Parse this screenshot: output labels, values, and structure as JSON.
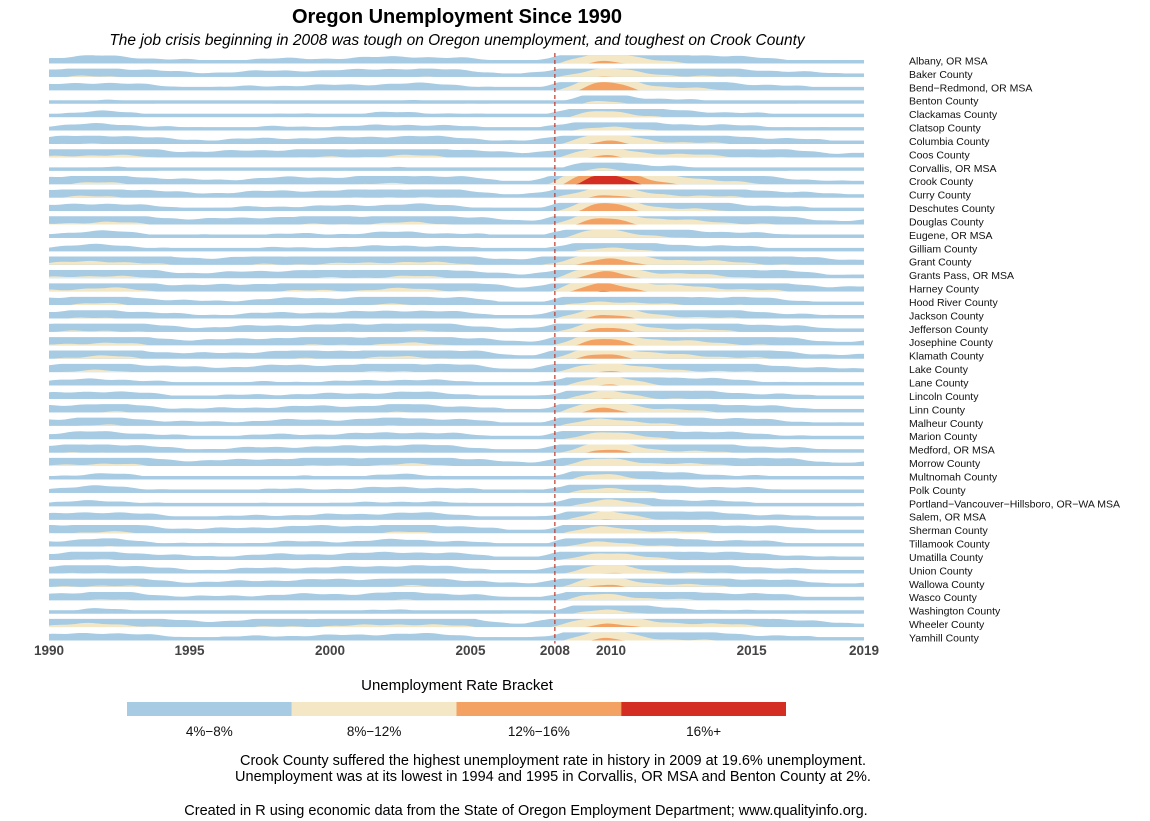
{
  "chart_data": {
    "type": "horizon",
    "title": "Oregon Unemployment Since 1990",
    "subtitle": "The job crisis beginning in 2008 was tough on Oregon unemployment, and toughest on Crook County",
    "x_ticks": [
      1990,
      1995,
      2000,
      2005,
      2008,
      2010,
      2015,
      2019
    ],
    "xlim": [
      1990,
      2019
    ],
    "reference_line": {
      "x": 2008,
      "color": "#c0392b",
      "style": "dashed"
    },
    "series": [
      {
        "name": "Albany, OR MSA",
        "peak": 12.5,
        "base": 6.5,
        "trough": 4.4
      },
      {
        "name": "Baker County",
        "peak": 11.5,
        "base": 7.2,
        "trough": 5.0
      },
      {
        "name": "Bend−Redmond, OR MSA",
        "peak": 14.5,
        "base": 6.5,
        "trough": 4.2
      },
      {
        "name": "Benton County",
        "peak": 8.5,
        "base": 4.5,
        "trough": 2.0
      },
      {
        "name": "Clackamas County",
        "peak": 10.5,
        "base": 5.5,
        "trough": 4.0
      },
      {
        "name": "Clatsop County",
        "peak": 9.5,
        "base": 6.0,
        "trough": 4.5
      },
      {
        "name": "Columbia County",
        "peak": 12.5,
        "base": 7.0,
        "trough": 5.0
      },
      {
        "name": "Coos County",
        "peak": 12.0,
        "base": 8.0,
        "trough": 5.5
      },
      {
        "name": "Corvallis, OR MSA",
        "peak": 8.5,
        "base": 4.5,
        "trough": 2.0
      },
      {
        "name": "Crook County",
        "peak": 19.6,
        "base": 7.5,
        "trough": 4.5
      },
      {
        "name": "Curry County",
        "peak": 12.5,
        "base": 7.5,
        "trough": 5.0
      },
      {
        "name": "Deschutes County",
        "peak": 14.5,
        "base": 6.5,
        "trough": 4.2
      },
      {
        "name": "Douglas County",
        "peak": 14.0,
        "base": 8.0,
        "trough": 5.2
      },
      {
        "name": "Eugene, OR MSA",
        "peak": 11.5,
        "base": 6.0,
        "trough": 4.3
      },
      {
        "name": "Gilliam County",
        "peak": 9.5,
        "base": 6.0,
        "trough": 3.5
      },
      {
        "name": "Grant County",
        "peak": 14.0,
        "base": 8.5,
        "trough": 6.0
      },
      {
        "name": "Grants Pass, OR MSA",
        "peak": 14.0,
        "base": 8.0,
        "trough": 5.0
      },
      {
        "name": "Harney County",
        "peak": 15.0,
        "base": 8.5,
        "trough": 5.5
      },
      {
        "name": "Hood River County",
        "peak": 9.5,
        "base": 7.5,
        "trough": 4.0
      },
      {
        "name": "Jackson County",
        "peak": 13.0,
        "base": 7.0,
        "trough": 4.5
      },
      {
        "name": "Jefferson County",
        "peak": 13.0,
        "base": 7.5,
        "trough": 4.8
      },
      {
        "name": "Josephine County",
        "peak": 14.0,
        "base": 8.0,
        "trough": 5.0
      },
      {
        "name": "Klamath County",
        "peak": 13.5,
        "base": 8.0,
        "trough": 5.0
      },
      {
        "name": "Lake County",
        "peak": 12.0,
        "base": 7.5,
        "trough": 5.0
      },
      {
        "name": "Lane County",
        "peak": 11.5,
        "base": 6.0,
        "trough": 4.3
      },
      {
        "name": "Lincoln County",
        "peak": 11.0,
        "base": 6.5,
        "trough": 4.5
      },
      {
        "name": "Linn County",
        "peak": 13.0,
        "base": 7.0,
        "trough": 4.5
      },
      {
        "name": "Malheur County",
        "peak": 11.0,
        "base": 7.0,
        "trough": 4.5
      },
      {
        "name": "Marion County",
        "peak": 11.0,
        "base": 6.5,
        "trough": 4.3
      },
      {
        "name": "Medford, OR MSA",
        "peak": 12.5,
        "base": 7.0,
        "trough": 4.5
      },
      {
        "name": "Morrow County",
        "peak": 11.0,
        "base": 8.0,
        "trough": 5.0
      },
      {
        "name": "Multnomah County",
        "peak": 10.0,
        "base": 5.5,
        "trough": 3.5
      },
      {
        "name": "Polk County",
        "peak": 10.0,
        "base": 6.0,
        "trough": 4.0
      },
      {
        "name": "Portland−Vancouver−Hillsboro, OR−WA MSA",
        "peak": 10.5,
        "base": 5.5,
        "trough": 3.8
      },
      {
        "name": "Salem, OR MSA",
        "peak": 11.0,
        "base": 6.5,
        "trough": 4.3
      },
      {
        "name": "Sherman County",
        "peak": 10.5,
        "base": 7.5,
        "trough": 4.5
      },
      {
        "name": "Tillamook County",
        "peak": 10.0,
        "base": 6.5,
        "trough": 4.0
      },
      {
        "name": "Umatilla County",
        "peak": 11.0,
        "base": 7.0,
        "trough": 4.5
      },
      {
        "name": "Union County",
        "peak": 11.5,
        "base": 7.0,
        "trough": 4.5
      },
      {
        "name": "Wallowa County",
        "peak": 12.0,
        "base": 7.5,
        "trough": 5.0
      },
      {
        "name": "Wasco County",
        "peak": 10.5,
        "base": 7.0,
        "trough": 4.5
      },
      {
        "name": "Washington County",
        "peak": 9.5,
        "base": 5.0,
        "trough": 3.5
      },
      {
        "name": "Wheeler County",
        "peak": 13.0,
        "base": 8.5,
        "trough": 5.0
      },
      {
        "name": "Yamhill County",
        "peak": 12.0,
        "base": 6.5,
        "trough": 4.5
      }
    ],
    "legend": {
      "title": "Unemployment Rate Bracket",
      "position": "bottom",
      "items": [
        {
          "label": "4%−8%",
          "color": "#a6cbe3"
        },
        {
          "label": "8%−12%",
          "color": "#f3e7c5"
        },
        {
          "label": "12%−16%",
          "color": "#f4a263"
        },
        {
          "label": "16%+",
          "color": "#d42e23"
        }
      ]
    },
    "notes": [
      "Crook County suffered the highest unemployment rate in history in 2009 at 19.6% unemployment.",
      "Unemployment was at its lowest in 1994 and 1995 in Corvallis, OR MSA and Benton County at 2%."
    ],
    "source": "Created in R using economic data from the State of Oregon Employment Department; www.qualityinfo.org."
  }
}
